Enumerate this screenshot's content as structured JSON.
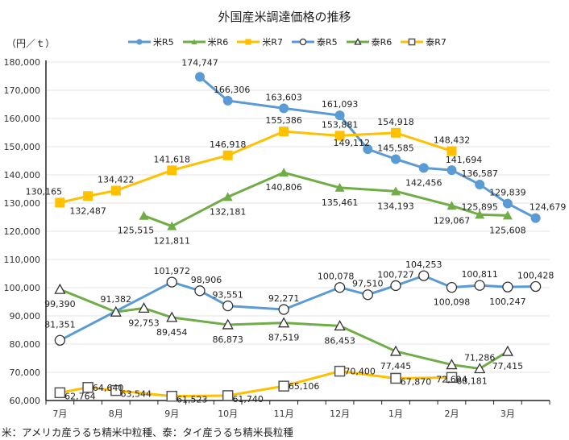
{
  "chart_data": {
    "type": "line",
    "title": "外国産米調達価格の推移",
    "ylabel": "（円／ｔ）",
    "xlabel": "",
    "ylim": [
      60000,
      180000
    ],
    "yticks": [
      60000,
      70000,
      80000,
      90000,
      100000,
      110000,
      120000,
      130000,
      140000,
      150000,
      160000,
      170000,
      180000
    ],
    "ytick_labels": [
      "60,000",
      "70,000",
      "80,000",
      "90,000",
      "100,000",
      "110,000",
      "120,000",
      "130,000",
      "140,000",
      "150,000",
      "160,000",
      "170,000",
      "180,000"
    ],
    "grid": true,
    "legend_position": "top",
    "categories": [
      "7月",
      "",
      "8月",
      "",
      "9月",
      "",
      "10月",
      "",
      "11月",
      "",
      "12月",
      "",
      "1月",
      "",
      "2月",
      "",
      "3月",
      ""
    ],
    "series": [
      {
        "name": "米R5",
        "color": "#5B9BD5",
        "marker": "circle-filled",
        "values": [
          null,
          null,
          null,
          null,
          null,
          174747,
          166306,
          null,
          163603,
          null,
          161093,
          149112,
          145585,
          142456,
          141694,
          136587,
          129839,
          124679
        ]
      },
      {
        "name": "米R6",
        "color": "#70AD47",
        "marker": "triangle-filled",
        "values": [
          null,
          null,
          null,
          125515,
          121811,
          null,
          132181,
          null,
          140806,
          null,
          135461,
          null,
          134193,
          null,
          129067,
          125895,
          125608,
          null
        ]
      },
      {
        "name": "米R7",
        "color": "#FFC000",
        "marker": "square-filled",
        "values": [
          130165,
          132487,
          134422,
          null,
          141618,
          null,
          146918,
          null,
          155386,
          null,
          153881,
          null,
          154918,
          null,
          148432,
          null,
          null,
          null
        ]
      },
      {
        "name": "泰R5",
        "color": "#5B9BD5",
        "marker": "circle-open",
        "values": [
          81351,
          null,
          null,
          null,
          101972,
          98906,
          93551,
          null,
          92271,
          null,
          100078,
          97510,
          100727,
          104253,
          100098,
          100811,
          100247,
          100428
        ]
      },
      {
        "name": "泰R6",
        "color": "#70AD47",
        "marker": "triangle-open",
        "values": [
          99390,
          null,
          91382,
          92753,
          89454,
          null,
          86873,
          null,
          87519,
          null,
          86453,
          null,
          77445,
          null,
          72694,
          71286,
          77415,
          null
        ]
      },
      {
        "name": "泰R7",
        "color": "#FFC000",
        "marker": "square-open",
        "values": [
          62764,
          64640,
          63544,
          null,
          61523,
          null,
          61740,
          null,
          65106,
          null,
          70400,
          null,
          67870,
          null,
          68181,
          null,
          null,
          null
        ]
      }
    ]
  },
  "footnote": "米：アメリカ産うるち精米中粒種、泰：タイ産うるち精米長粒種"
}
